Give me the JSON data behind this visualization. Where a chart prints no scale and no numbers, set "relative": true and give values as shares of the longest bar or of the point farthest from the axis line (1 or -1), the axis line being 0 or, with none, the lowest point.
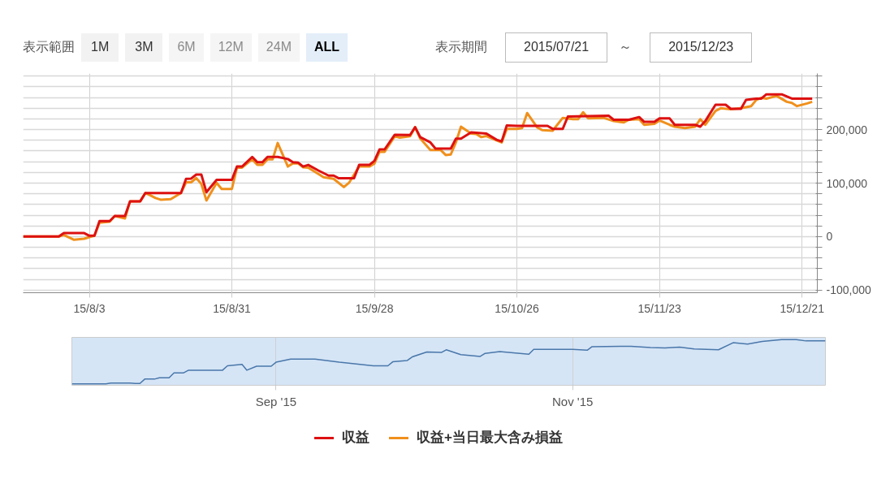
{
  "chart_data": [
    {
      "type": "line",
      "annotations": [
        "表示範囲",
        "1M",
        "3M",
        "6M",
        "12M",
        "24M",
        "ALL",
        "表示期間",
        "2015/07/21",
        "～",
        "2015/12/23"
      ],
      "xlim": [
        "2015-07-21",
        "2015-12-24"
      ],
      "xticks": [
        {
          "value": "2015-08-03",
          "label": "15/8/3"
        },
        {
          "value": "2015-08-31",
          "label": "15/8/31"
        },
        {
          "value": "2015-09-28",
          "label": "15/9/28"
        },
        {
          "value": "2015-10-26",
          "label": "15/10/26"
        },
        {
          "value": "2015-11-23",
          "label": "15/11/23"
        },
        {
          "value": "2015-12-21",
          "label": "15/12/21"
        }
      ],
      "ylim": [
        -105000,
        305000
      ],
      "yticks": [
        {
          "value": -100000,
          "label": "-100,000"
        },
        {
          "value": -80000,
          "label": null
        },
        {
          "value": -60000,
          "label": null
        },
        {
          "value": -40000,
          "label": null
        },
        {
          "value": -20000,
          "label": null
        },
        0,
        {
          "value": 20000,
          "label": null
        },
        {
          "value": 40000,
          "label": null
        },
        {
          "value": 60000,
          "label": null
        },
        {
          "value": 80000,
          "label": null
        },
        {
          "value": 100000,
          "label": "100,000"
        },
        {
          "value": 120000,
          "label": null
        },
        {
          "value": 140000,
          "label": null
        },
        {
          "value": 160000,
          "label": null
        },
        {
          "value": 180000,
          "label": null
        },
        {
          "value": 200000,
          "label": "200,000"
        },
        {
          "value": 220000,
          "label": null
        },
        {
          "value": 240000,
          "label": null
        },
        {
          "value": 260000,
          "label": null
        },
        {
          "value": 280000,
          "label": null
        },
        {
          "value": 300000,
          "label": null
        }
      ],
      "grid": true,
      "legend": "bottom",
      "series": [
        {
          "name": "収益+当日最大含み損益",
          "color": "#f0901c",
          "x": [
            "2015-07-21",
            "2015-07-28",
            "2015-07-29",
            "2015-07-31",
            "2015-08-02",
            "2015-08-03",
            "2015-08-04",
            "2015-08-05",
            "2015-08-07",
            "2015-08-08",
            "2015-08-10",
            "2015-08-11",
            "2015-08-13",
            "2015-08-14",
            "2015-08-15",
            "2015-08-16",
            "2015-08-17",
            "2015-08-19",
            "2015-08-21",
            "2015-08-22",
            "2015-08-23",
            "2015-08-24",
            "2015-08-25",
            "2015-08-26",
            "2015-08-28",
            "2015-08-29",
            "2015-08-31",
            "2015-09-01",
            "2015-09-02",
            "2015-09-04",
            "2015-09-05",
            "2015-09-06",
            "2015-09-07",
            "2015-09-08",
            "2015-09-09",
            "2015-09-11",
            "2015-09-12",
            "2015-09-13",
            "2015-09-14",
            "2015-09-15",
            "2015-09-17",
            "2015-09-18",
            "2015-09-20",
            "2015-09-22",
            "2015-09-23",
            "2015-09-25",
            "2015-09-27",
            "2015-09-28",
            "2015-09-29",
            "2015-09-30",
            "2015-10-02",
            "2015-10-03",
            "2015-10-05",
            "2015-10-06",
            "2015-10-07",
            "2015-10-09",
            "2015-10-11",
            "2015-10-12",
            "2015-10-13",
            "2015-10-14",
            "2015-10-15",
            "2015-10-17",
            "2015-10-18",
            "2015-10-19",
            "2015-10-20",
            "2015-10-22",
            "2015-10-23",
            "2015-10-24",
            "2015-10-26",
            "2015-10-27",
            "2015-10-28",
            "2015-10-30",
            "2015-10-31",
            "2015-11-02",
            "2015-11-04",
            "2015-11-06",
            "2015-11-07",
            "2015-11-08",
            "2015-11-09",
            "2015-11-12",
            "2015-11-14",
            "2015-11-16",
            "2015-11-17",
            "2015-11-19",
            "2015-11-20",
            "2015-11-22",
            "2015-11-23",
            "2015-11-25",
            "2015-11-26",
            "2015-11-28",
            "2015-11-30",
            "2015-12-01",
            "2015-12-02",
            "2015-12-04",
            "2015-12-05",
            "2015-12-07",
            "2015-12-09",
            "2015-12-11",
            "2015-12-12",
            "2015-12-13",
            "2015-12-14",
            "2015-12-16",
            "2015-12-18",
            "2015-12-19",
            "2015-12-20",
            "2015-12-22",
            "2015-12-23"
          ],
          "values": [
            0,
            0,
            3000,
            -6000,
            -4000,
            -1000,
            1500,
            26000,
            28000,
            38500,
            34000,
            66000,
            66000,
            81500,
            77000,
            72000,
            69000,
            70000,
            81500,
            101500,
            101500,
            109500,
            98500,
            67500,
            100500,
            89000,
            89000,
            129000,
            129000,
            144500,
            134000,
            134000,
            144500,
            144500,
            175000,
            131000,
            137000,
            137000,
            129500,
            129000,
            117000,
            111000,
            108000,
            92500,
            100500,
            131000,
            131000,
            136500,
            158500,
            158500,
            187500,
            185000,
            187500,
            204500,
            183500,
            162000,
            162000,
            152500,
            153500,
            176000,
            205500,
            192500,
            192000,
            186000,
            188000,
            180000,
            176000,
            201500,
            201500,
            203000,
            231000,
            204000,
            199000,
            198000,
            222000,
            219500,
            219500,
            232500,
            221000,
            222000,
            216000,
            213500,
            218500,
            219500,
            209000,
            211000,
            217000,
            209000,
            205500,
            203000,
            205500,
            219500,
            209000,
            235000,
            240000,
            238000,
            240000,
            244000,
            255500,
            259500,
            258000,
            263000,
            252000,
            250000,
            244000,
            249000,
            252000
          ]
        },
        {
          "name": "収益",
          "color": "#dd1111",
          "x": [
            "2015-07-21",
            "2015-07-28",
            "2015-07-29",
            "2015-08-02",
            "2015-08-03",
            "2015-08-04",
            "2015-08-05",
            "2015-08-07",
            "2015-08-08",
            "2015-08-10",
            "2015-08-11",
            "2015-08-13",
            "2015-08-14",
            "2015-08-21",
            "2015-08-22",
            "2015-08-23",
            "2015-08-24",
            "2015-08-25",
            "2015-08-26",
            "2015-08-28",
            "2015-08-31",
            "2015-09-01",
            "2015-09-02",
            "2015-09-04",
            "2015-09-05",
            "2015-09-06",
            "2015-09-07",
            "2015-09-09",
            "2015-09-11",
            "2015-09-12",
            "2015-09-13",
            "2015-09-14",
            "2015-09-15",
            "2015-09-17",
            "2015-09-19",
            "2015-09-20",
            "2015-09-21",
            "2015-09-24",
            "2015-09-25",
            "2015-09-27",
            "2015-09-28",
            "2015-09-29",
            "2015-09-30",
            "2015-10-02",
            "2015-10-05",
            "2015-10-06",
            "2015-10-07",
            "2015-10-09",
            "2015-10-10",
            "2015-10-13",
            "2015-10-14",
            "2015-10-15",
            "2015-10-17",
            "2015-10-20",
            "2015-10-22",
            "2015-10-23",
            "2015-10-24",
            "2015-10-26",
            "2015-11-01",
            "2015-11-02",
            "2015-11-04",
            "2015-11-05",
            "2015-11-13",
            "2015-11-14",
            "2015-11-17",
            "2015-11-19",
            "2015-11-20",
            "2015-11-22",
            "2015-11-23",
            "2015-11-25",
            "2015-11-26",
            "2015-11-30",
            "2015-12-01",
            "2015-12-02",
            "2015-12-04",
            "2015-12-06",
            "2015-12-07",
            "2015-12-09",
            "2015-12-10",
            "2015-12-12",
            "2015-12-13",
            "2015-12-14",
            "2015-12-17",
            "2015-12-19",
            "2015-12-23"
          ],
          "values": [
            0,
            0,
            6500,
            6500,
            1500,
            1500,
            29000,
            29000,
            38500,
            38500,
            66000,
            66000,
            81500,
            81500,
            108000,
            108500,
            116000,
            116000,
            83000,
            106000,
            106000,
            131000,
            131000,
            149000,
            139000,
            139000,
            149000,
            149000,
            145000,
            139000,
            138500,
            131000,
            134000,
            123500,
            114000,
            114000,
            109000,
            109000,
            134000,
            134000,
            141500,
            163000,
            163000,
            190500,
            190000,
            204500,
            186000,
            176000,
            164500,
            164500,
            183000,
            183000,
            195000,
            192500,
            181000,
            178000,
            208000,
            207000,
            207000,
            201500,
            201500,
            224500,
            226000,
            218500,
            218500,
            223500,
            214500,
            214500,
            221000,
            221000,
            209000,
            209000,
            205500,
            216000,
            246500,
            246500,
            239000,
            239000,
            255500,
            258000,
            258000,
            266000,
            266000,
            258000,
            258000
          ]
        }
      ]
    },
    {
      "type": "line",
      "relative": true,
      "xlim": [
        "2015-07-21",
        "2015-12-23"
      ],
      "xticks": [
        {
          "value": "2015-09-01",
          "label": "Sep '15"
        },
        {
          "value": "2015-11-01",
          "label": "Nov '15"
        }
      ],
      "grid": "x",
      "series": [
        {
          "color": "#4a77aa",
          "x": [
            "2015-07-21",
            "2015-07-28",
            "2015-07-29",
            "2015-08-02",
            "2015-08-03",
            "2015-08-04",
            "2015-08-05",
            "2015-08-07",
            "2015-08-08",
            "2015-08-10",
            "2015-08-11",
            "2015-08-13",
            "2015-08-14",
            "2015-08-21",
            "2015-08-22",
            "2015-08-25",
            "2015-08-26",
            "2015-08-28",
            "2015-08-31",
            "2015-09-01",
            "2015-09-04",
            "2015-09-09",
            "2015-09-14",
            "2015-09-21",
            "2015-09-24",
            "2015-09-25",
            "2015-09-28",
            "2015-09-29",
            "2015-10-02",
            "2015-10-05",
            "2015-10-06",
            "2015-10-09",
            "2015-10-13",
            "2015-10-14",
            "2015-10-17",
            "2015-10-23",
            "2015-10-24",
            "2015-11-01",
            "2015-11-04",
            "2015-11-05",
            "2015-11-13",
            "2015-11-17",
            "2015-11-20",
            "2015-11-23",
            "2015-11-26",
            "2015-12-01",
            "2015-12-04",
            "2015-12-07",
            "2015-12-10",
            "2015-12-14",
            "2015-12-17",
            "2015-12-19",
            "2015-12-23"
          ],
          "values": [
            0,
            0,
            0.02,
            0.02,
            0.01,
            0.01,
            0.11,
            0.11,
            0.14,
            0.14,
            0.25,
            0.25,
            0.31,
            0.31,
            0.41,
            0.44,
            0.31,
            0.4,
            0.4,
            0.49,
            0.56,
            0.56,
            0.49,
            0.41,
            0.41,
            0.5,
            0.53,
            0.61,
            0.72,
            0.71,
            0.77,
            0.66,
            0.62,
            0.69,
            0.73,
            0.67,
            0.78,
            0.78,
            0.76,
            0.84,
            0.85,
            0.82,
            0.81,
            0.83,
            0.79,
            0.77,
            0.93,
            0.9,
            0.96,
            1,
            1,
            0.97,
            0.97
          ]
        }
      ]
    }
  ]
}
